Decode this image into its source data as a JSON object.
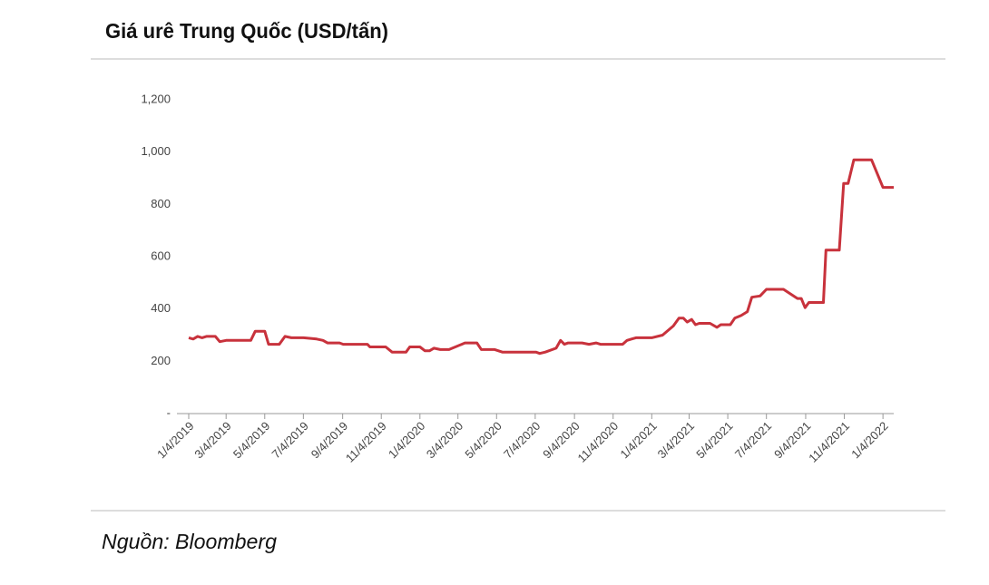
{
  "chart_data": {
    "type": "line",
    "title": "Giá urê Trung Quốc (USD/tấn)",
    "source": "Nguồn: Bloomberg",
    "x": [
      "2019-01-04",
      "2019-01-11",
      "2019-01-18",
      "2019-01-25",
      "2019-02-01",
      "2019-02-15",
      "2019-02-22",
      "2019-03-04",
      "2019-04-12",
      "2019-04-19",
      "2019-05-04",
      "2019-05-10",
      "2019-05-27",
      "2019-06-05",
      "2019-06-15",
      "2019-07-04",
      "2019-07-25",
      "2019-08-04",
      "2019-08-11",
      "2019-08-30",
      "2019-09-05",
      "2019-10-13",
      "2019-10-17",
      "2019-11-11",
      "2019-11-21",
      "2019-12-13",
      "2019-12-19",
      "2020-01-04",
      "2020-01-12",
      "2020-01-19",
      "2020-01-26",
      "2020-02-05",
      "2020-02-19",
      "2020-03-10",
      "2020-03-15",
      "2020-04-03",
      "2020-04-10",
      "2020-05-01",
      "2020-05-13",
      "2020-07-05",
      "2020-07-11",
      "2020-07-20",
      "2020-08-06",
      "2020-08-13",
      "2020-08-19",
      "2020-08-25",
      "2020-09-16",
      "2020-09-27",
      "2020-10-08",
      "2020-10-15",
      "2020-11-19",
      "2020-11-26",
      "2020-12-03",
      "2020-12-10",
      "2021-01-04",
      "2021-01-21",
      "2021-02-07",
      "2021-02-16",
      "2021-02-23",
      "2021-03-01",
      "2021-03-08",
      "2021-03-14",
      "2021-03-20",
      "2021-04-06",
      "2021-04-17",
      "2021-04-23",
      "2021-05-08",
      "2021-05-15",
      "2021-05-25",
      "2021-06-04",
      "2021-06-11",
      "2021-06-24",
      "2021-07-04",
      "2021-07-31",
      "2021-08-22",
      "2021-08-28",
      "2021-09-03",
      "2021-09-09",
      "2021-10-02",
      "2021-10-06",
      "2021-10-27",
      "2021-11-03",
      "2021-11-10",
      "2021-11-19",
      "2021-12-17",
      "2022-01-04",
      "2022-01-21"
    ],
    "series": [
      {
        "name": "Giá urê",
        "color": "#c8323c",
        "values": [
          290,
          285,
          295,
          290,
          295,
          295,
          275,
          280,
          280,
          315,
          315,
          265,
          265,
          295,
          290,
          290,
          285,
          280,
          270,
          270,
          265,
          265,
          255,
          255,
          235,
          235,
          255,
          255,
          240,
          240,
          250,
          245,
          245,
          265,
          270,
          270,
          245,
          245,
          235,
          235,
          230,
          235,
          250,
          280,
          265,
          270,
          270,
          265,
          270,
          265,
          265,
          280,
          285,
          290,
          290,
          300,
          335,
          365,
          365,
          350,
          360,
          340,
          345,
          345,
          330,
          340,
          340,
          365,
          375,
          390,
          445,
          450,
          475,
          475,
          440,
          440,
          405,
          425,
          425,
          625,
          625,
          880,
          880,
          970,
          970,
          865,
          865
        ]
      }
    ],
    "xlim": [
      "2019-01-04",
      "2022-01-21"
    ],
    "xticks": [
      {
        "value": "2019-01-04",
        "label": "1/4/2019"
      },
      {
        "value": "2019-03-04",
        "label": "3/4/2019"
      },
      {
        "value": "2019-05-04",
        "label": "5/4/2019"
      },
      {
        "value": "2019-07-04",
        "label": "7/4/2019"
      },
      {
        "value": "2019-09-04",
        "label": "9/4/2019"
      },
      {
        "value": "2019-11-04",
        "label": "11/4/2019"
      },
      {
        "value": "2020-01-04",
        "label": "1/4/2020"
      },
      {
        "value": "2020-03-04",
        "label": "3/4/2020"
      },
      {
        "value": "2020-05-04",
        "label": "5/4/2020"
      },
      {
        "value": "2020-07-04",
        "label": "7/4/2020"
      },
      {
        "value": "2020-09-04",
        "label": "9/4/2020"
      },
      {
        "value": "2020-11-04",
        "label": "11/4/2020"
      },
      {
        "value": "2021-01-04",
        "label": "1/4/2021"
      },
      {
        "value": "2021-03-04",
        "label": "3/4/2021"
      },
      {
        "value": "2021-05-04",
        "label": "5/4/2021"
      },
      {
        "value": "2021-07-04",
        "label": "7/4/2021"
      },
      {
        "value": "2021-09-04",
        "label": "9/4/2021"
      },
      {
        "value": "2021-11-04",
        "label": "11/4/2021"
      },
      {
        "value": "2022-01-04",
        "label": "1/4/2022"
      }
    ],
    "ylim": [
      0,
      1200
    ],
    "yticks": [
      {
        "value": 0,
        "label": "-"
      },
      200,
      400,
      600,
      800,
      {
        "value": 1000,
        "label": "1,000"
      },
      {
        "value": 1200,
        "label": "1,200"
      }
    ],
    "grid": false
  }
}
